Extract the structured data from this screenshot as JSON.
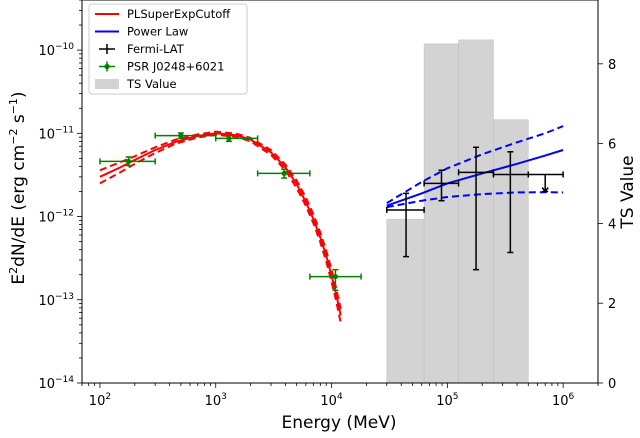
{
  "chart_data": {
    "type": "scatter",
    "xlabel": "Energy (MeV)",
    "ylabel_base": "E",
    "ylabel_mid": "dN/dE (erg cm",
    "ylabel_mid2": " s",
    "ylabel_end": ")",
    "y2label": "TS Value",
    "xscale": "log",
    "yscale": "log",
    "xlim": [
      70,
      2000000
    ],
    "ylim": [
      1e-14,
      4e-10
    ],
    "y2lim": [
      0,
      9.6
    ],
    "x_ticks": [
      {
        "value": 100,
        "base": "10",
        "exp": "2"
      },
      {
        "value": 1000,
        "base": "10",
        "exp": "3"
      },
      {
        "value": 10000,
        "base": "10",
        "exp": "4"
      },
      {
        "value": 100000,
        "base": "10",
        "exp": "5"
      },
      {
        "value": 1000000,
        "base": "10",
        "exp": "6"
      }
    ],
    "y_ticks": [
      {
        "value": 1e-14,
        "base": "10",
        "exp": "−14"
      },
      {
        "value": 1e-13,
        "base": "10",
        "exp": "−13"
      },
      {
        "value": 1e-12,
        "base": "10",
        "exp": "−12"
      },
      {
        "value": 1e-11,
        "base": "10",
        "exp": "−11"
      },
      {
        "value": 1e-10,
        "base": "10",
        "exp": "−10"
      }
    ],
    "y2_ticks": [
      "0",
      "2",
      "4",
      "6",
      "8"
    ],
    "legend": {
      "placement": "upper-left",
      "entries": [
        {
          "label": "PLSuperExpCutoff",
          "kind": "line",
          "color": "#ff0000"
        },
        {
          "label": "Power Law",
          "kind": "line",
          "color": "#0000ff"
        },
        {
          "label": "Fermi-LAT",
          "kind": "errorbar",
          "color": "#000000"
        },
        {
          "label": "PSR J0248+6021",
          "kind": "errorbar",
          "color": "#008000"
        },
        {
          "label": "TS Value",
          "kind": "patch",
          "color": "#d3d3d3"
        }
      ]
    },
    "ts_bars": [
      {
        "x0": 30000,
        "x1": 63000,
        "ts": 4.1
      },
      {
        "x0": 63000,
        "x1": 125000,
        "ts": 8.5
      },
      {
        "x0": 125000,
        "x1": 250000,
        "ts": 8.6
      },
      {
        "x0": 250000,
        "x1": 500000,
        "ts": 6.6
      }
    ],
    "psr_points": [
      {
        "x": 177,
        "xlo": 100,
        "xhi": 300,
        "y": 4.6e-12,
        "ylo": 4.1e-12,
        "yhi": 5.2e-12
      },
      {
        "x": 500,
        "xlo": 300,
        "xhi": 1000,
        "y": 9.4e-12,
        "ylo": 8.7e-12,
        "yhi": 1.01e-11
      },
      {
        "x": 1300,
        "xlo": 1000,
        "xhi": 2300,
        "y": 8.7e-12,
        "ylo": 8e-12,
        "yhi": 9.4e-12
      },
      {
        "x": 3900,
        "xlo": 2300,
        "xhi": 6500,
        "y": 3.3e-12,
        "ylo": 2.9e-12,
        "yhi": 3.7e-12
      },
      {
        "x": 10800,
        "xlo": 6500,
        "xhi": 18000,
        "y": 1.9e-13,
        "ylo": 1.3e-13,
        "yhi": 2.3e-13
      }
    ],
    "fermi_points": [
      {
        "x": 44000,
        "xlo": 30000,
        "xhi": 63000,
        "y": 1.2e-12,
        "ylo": 3.3e-13,
        "yhi": 1.9e-12,
        "upper_limit": false
      },
      {
        "x": 89000,
        "xlo": 63000,
        "xhi": 125000,
        "y": 2.5e-12,
        "ylo": 1.55e-12,
        "yhi": 3.6e-12,
        "upper_limit": false
      },
      {
        "x": 177000,
        "xlo": 125000,
        "xhi": 250000,
        "y": 3.4e-12,
        "ylo": 2.3e-13,
        "yhi": 6.8e-12,
        "upper_limit": false
      },
      {
        "x": 350000,
        "xlo": 250000,
        "xhi": 500000,
        "y": 3.2e-12,
        "ylo": 3.7e-13,
        "yhi": 6e-12,
        "upper_limit": false
      },
      {
        "x": 700000,
        "xlo": 500000,
        "xhi": 1000000,
        "y": 3.2e-12,
        "ylo": 2e-12,
        "yhi": 3.2e-12,
        "upper_limit": true
      }
    ],
    "cutoff_model": {
      "x": [
        100,
        150,
        200,
        300,
        450,
        700,
        1000,
        1500,
        2000,
        3000,
        4000,
        5000,
        6000,
        7000,
        8000,
        9000,
        10000,
        11000,
        12000
      ],
      "y": [
        3e-12,
        3.9e-12,
        4.8e-12,
        6.3e-12,
        7.9e-12,
        9.3e-12,
        1e-11,
        9.5e-12,
        8.4e-12,
        5.9e-12,
        3.9e-12,
        2.45e-12,
        1.5e-12,
        9.2e-13,
        5.6e-13,
        3.4e-13,
        1.95e-13,
        1.15e-13,
        6.5e-14
      ],
      "y_lo": [
        2.5e-12,
        3.4e-12,
        4.3e-12,
        5.8e-12,
        7.5e-12,
        8.9e-12,
        9.6e-12,
        9.1e-12,
        8e-12,
        5.5e-12,
        3.6e-12,
        2.2e-12,
        1.35e-12,
        8.2e-13,
        4.9e-13,
        2.9e-13,
        1.65e-13,
        9.5e-14,
        5.3e-14
      ],
      "y_hi": [
        3.6e-12,
        4.5e-12,
        5.3e-12,
        6.8e-12,
        8.4e-12,
        9.7e-12,
        1.05e-11,
        9.9e-12,
        8.8e-12,
        6.3e-12,
        4.2e-12,
        2.7e-12,
        1.7e-12,
        1.05e-12,
        6.4e-13,
        3.9e-13,
        2.3e-13,
        1.35e-13,
        7.8e-14
      ]
    },
    "powerlaw_model": {
      "x": [
        30000,
        60000,
        100000,
        200000,
        400000,
        700000,
        1000000
      ],
      "y": [
        1.35e-12,
        1.9e-12,
        2.5e-12,
        3.3e-12,
        4.3e-12,
        5.4e-12,
        6.3e-12
      ],
      "y_lo": [
        1.3e-12,
        1.55e-12,
        1.72e-12,
        1.86e-12,
        1.95e-12,
        1.96e-12,
        1.95e-12
      ],
      "y_hi": [
        1.45e-12,
        2.6e-12,
        3.8e-12,
        5.6e-12,
        7.8e-12,
        1e-11,
        1.22e-11
      ]
    }
  }
}
